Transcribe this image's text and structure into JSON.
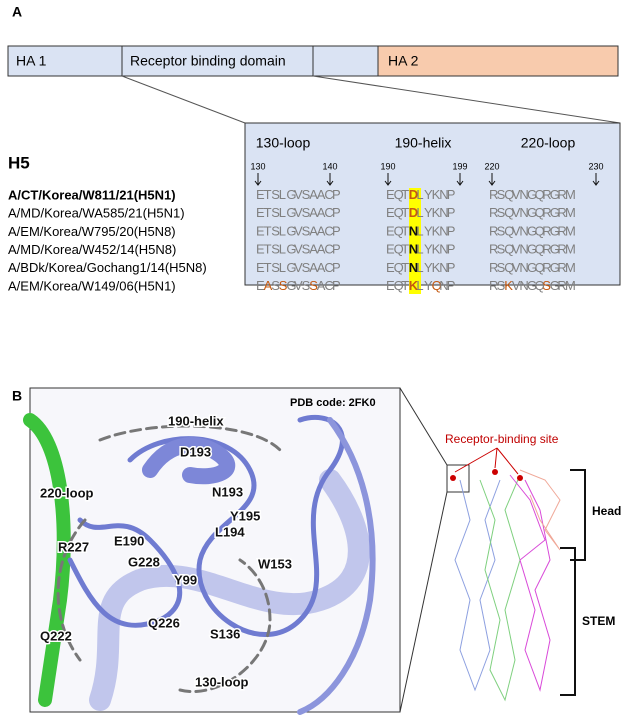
{
  "panel_a": {
    "label": "A",
    "domains": [
      "HA 1",
      "Receptor binding domain",
      "HA 2"
    ],
    "alignment": {
      "subtype": "H5",
      "regions": [
        "130-loop",
        "190-helix",
        "220-loop"
      ],
      "positions": [
        "130",
        "140",
        "190",
        "199",
        "220",
        "230"
      ],
      "strains": [
        {
          "name": "A/CT/Korea/W811/21(H5N1)",
          "segments": [
            "ETSLGVSAACP",
            "EQTDLYKNP",
            "RSQVNGQRGRM"
          ]
        },
        {
          "name": "A/MD/Korea/WA585/21(H5N1)",
          "segments": [
            "ETSLGVSAACP",
            "EQTDLYKNP",
            "RSQVNGQRGRM"
          ]
        },
        {
          "name": "A/EM/Korea/W795/20(H5N8)",
          "segments": [
            "ETSLGVSAACP",
            "EQTNLYKNP",
            "RSQVNGQRGRM"
          ]
        },
        {
          "name": "A/MD/Korea/W452/14(H5N8)",
          "segments": [
            "ETSLGVSAACP",
            "EQTNLYKNP",
            "RSQVNGQRGRM"
          ]
        },
        {
          "name": "A/BDk/Korea/Gochang1/14(H5N8)",
          "segments": [
            "ETSLGVSAACP",
            "EQTNLYKNP",
            "RSQVNGQRGRM"
          ]
        },
        {
          "name": "A/EM/Korea/W149/06(H5N1)",
          "segments": [
            "EASSGVSSACP",
            "EQTKLYQNP",
            "RSKVNGQSGRM"
          ]
        }
      ]
    }
  },
  "panel_b": {
    "label": "B",
    "pdb_code": "PDB code: 2FK0",
    "regions": [
      "190-helix",
      "220-loop",
      "130-loop"
    ],
    "residues": [
      "D193",
      "N193",
      "Y195",
      "L194",
      "E190",
      "R227",
      "G228",
      "W153",
      "Y99",
      "Q226",
      "S136",
      "Q222"
    ],
    "receptor_site": "Receptor-binding site",
    "head": "Head",
    "stem": "STEM"
  }
}
